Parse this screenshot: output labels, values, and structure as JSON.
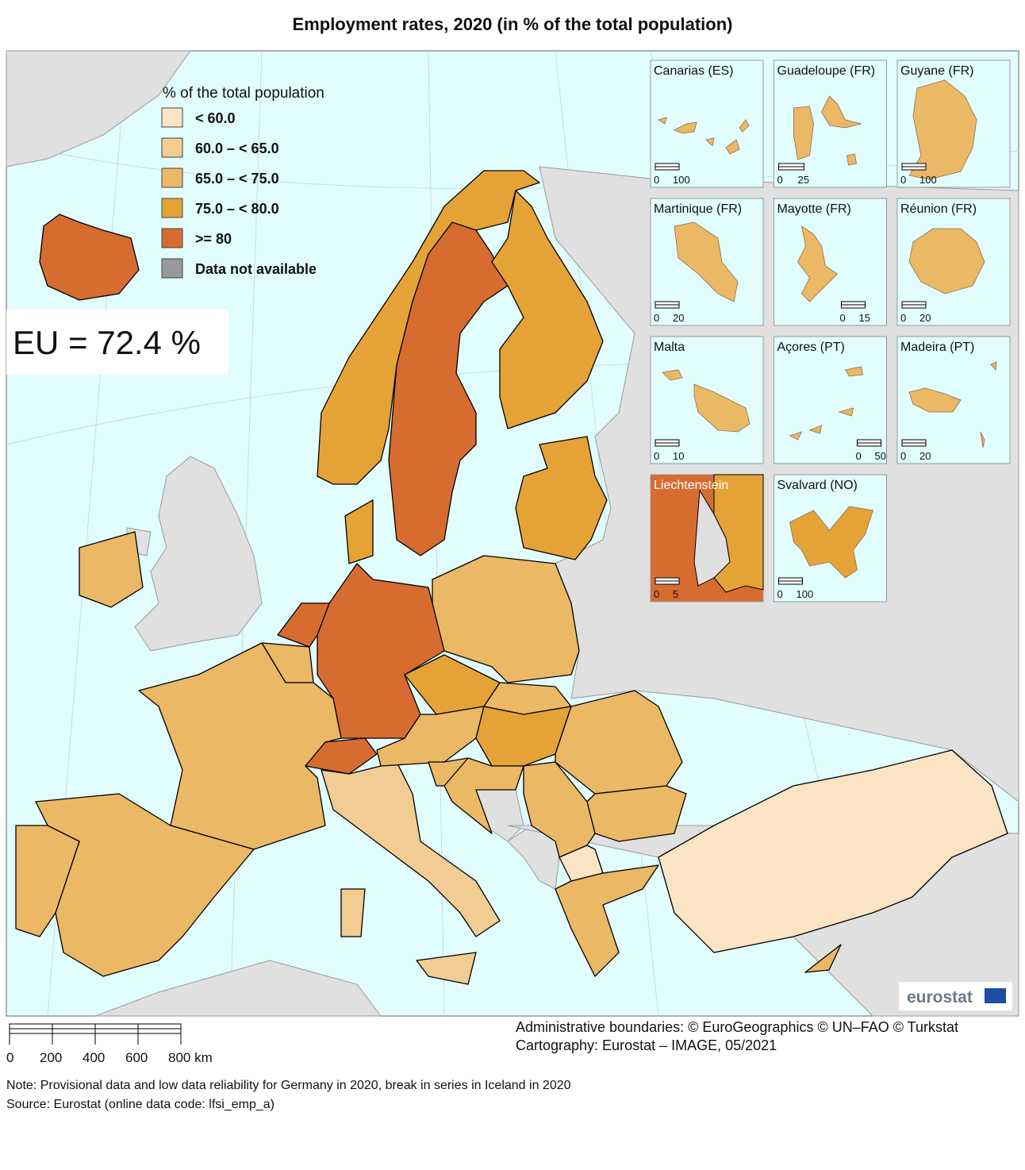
{
  "title": "Employment rates, 2020 (in % of the total population)",
  "legend": {
    "title": "% of the total population",
    "items": [
      {
        "label": "< 60.0",
        "color": "#fbe4c4"
      },
      {
        "label": "60.0 – < 65.0",
        "color": "#f1cd93"
      },
      {
        "label": "65.0 – < 75.0",
        "color": "#ebb865"
      },
      {
        "label": "75.0 – < 80.0",
        "color": "#e5a337"
      },
      {
        "label": ">= 80",
        "color": "#d76c31"
      },
      {
        "label": "Data not available",
        "color": "#999999"
      }
    ]
  },
  "eu_average": "EU = 72.4 %",
  "insets": [
    {
      "title": "Canarias (ES)",
      "scale": [
        "0",
        "100"
      ]
    },
    {
      "title": "Guadeloupe (FR)",
      "scale": [
        "0",
        "25"
      ]
    },
    {
      "title": "Guyane (FR)",
      "scale": [
        "0",
        "100"
      ]
    },
    {
      "title": "Martinique (FR)",
      "scale": [
        "0",
        "20"
      ]
    },
    {
      "title": "Mayotte (FR)",
      "scale": [
        "0",
        "15"
      ]
    },
    {
      "title": "Réunion (FR)",
      "scale": [
        "0",
        "20"
      ]
    },
    {
      "title": "Malta",
      "scale": [
        "0",
        "10"
      ]
    },
    {
      "title": "Açores (PT)",
      "scale": [
        "0",
        "50"
      ]
    },
    {
      "title": "Madeira (PT)",
      "scale": [
        "0",
        "20"
      ]
    },
    {
      "title": "Liechtenstein",
      "scale": [
        "0",
        "5"
      ]
    },
    {
      "title": "Svalvard (NO)",
      "scale": [
        "0",
        "100"
      ]
    }
  ],
  "scale_bar": {
    "labels": [
      "0",
      "200",
      "400",
      "600",
      "800 km"
    ]
  },
  "credits": [
    "Administrative boundaries: © EuroGeographics © UN–FAO © Turkstat",
    "Cartography: Eurostat – IMAGE, 05/2021"
  ],
  "note": "Note: Provisional data and low data reliability for Germany in 2020, break in series in Iceland in 2020",
  "source": "Source: Eurostat (online data code: lfsi_emp_a)",
  "logo": "eurostat"
}
